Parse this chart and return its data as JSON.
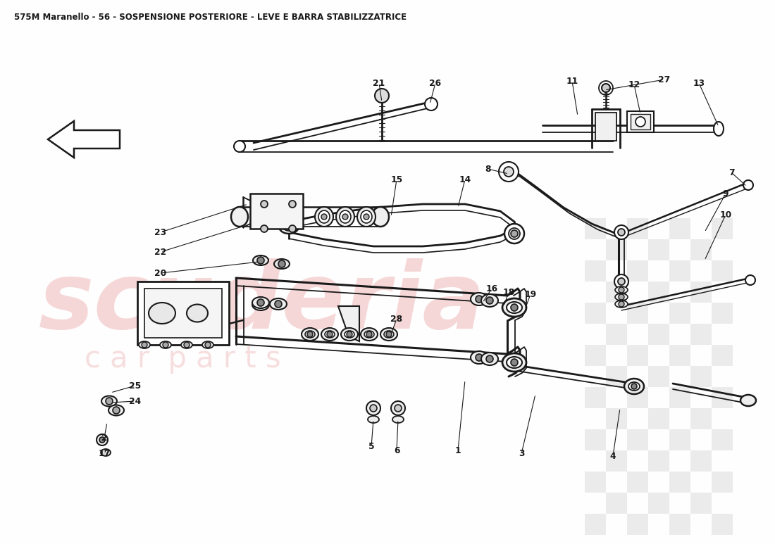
{
  "title": "575M Maranello - 56 - SOSPENSIONE POSTERIORE - LEVE E BARRA STABILIZZATRICE",
  "title_fontsize": 8.5,
  "title_color": "#1a1a1a",
  "bg_color": "#FEFEFE",
  "line_color": "#1a1a1a",
  "watermark_color": "#f0b8b8",
  "checker_color": "#c8c8c8"
}
